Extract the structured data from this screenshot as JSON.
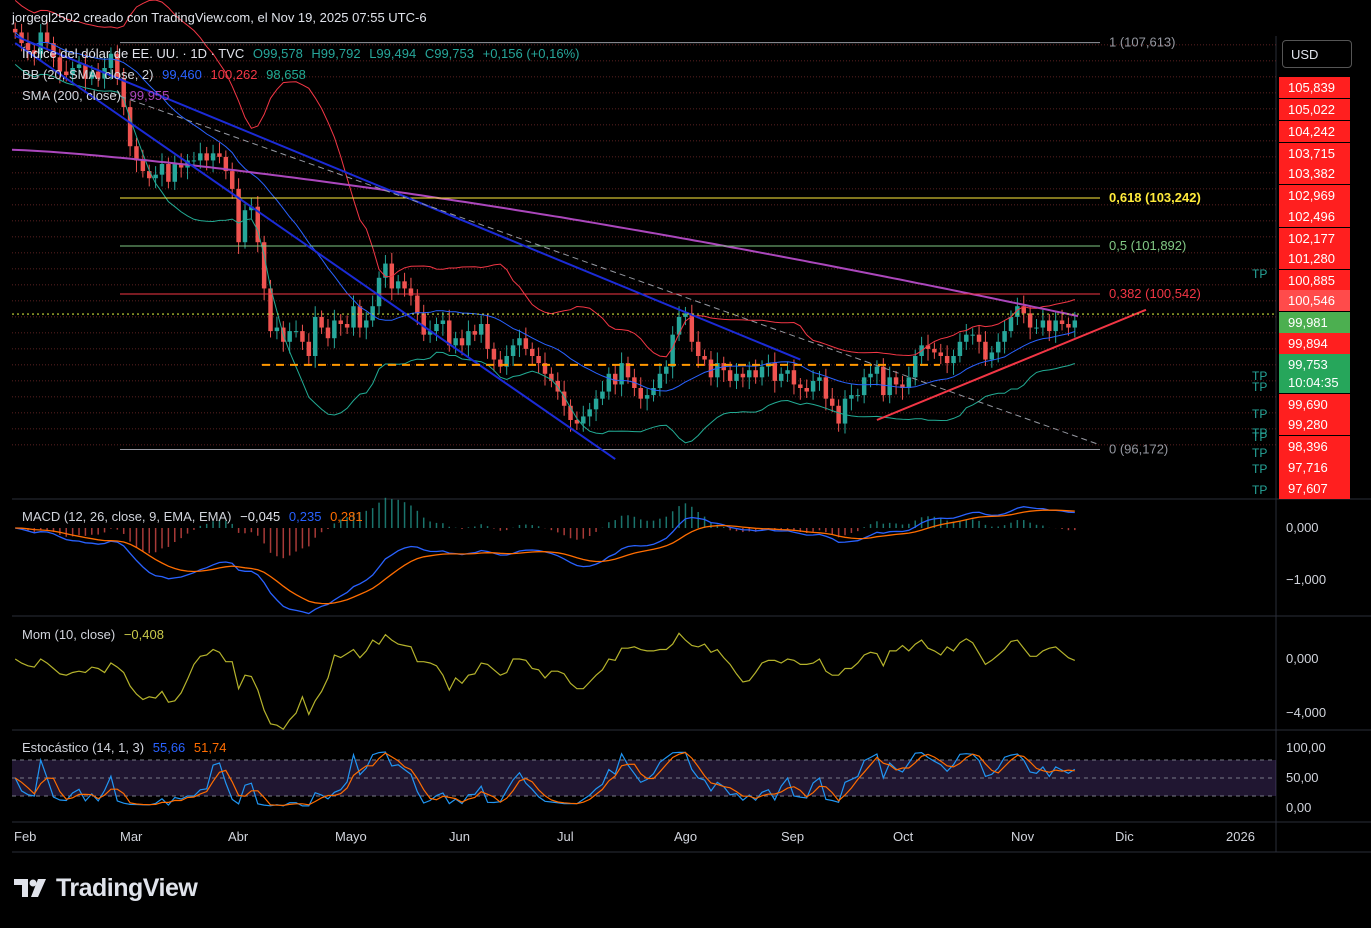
{
  "header": {
    "text": "jorgegl2502 creado con TradingView.com, el Nov 19, 2025 07:55 UTC-6"
  },
  "legend": {
    "symbol": "Índice del dólar de EE. UU. · 1D · TVC",
    "open": "O99,578",
    "high": "H99,792",
    "low": "L99,494",
    "close": "C99,753",
    "change": "+0,156 (+0,16%)",
    "bb_label": "BB (20, SMA, close, 2)",
    "bb_basis": "99,460",
    "bb_upper": "100,262",
    "bb_lower": "98,658",
    "sma_label": "SMA (200, close)",
    "sma_value": "99,955",
    "macd_label": "MACD (12, 26, close, 9, EMA, EMA)",
    "macd_hist": "−0,045",
    "macd_line": "0,235",
    "macd_signal": "0,281",
    "mom_label": "Mom (10, close)",
    "mom_value": "−0,408",
    "stoch_label": "Estocástico (14, 1, 3)",
    "stoch_k": "55,66",
    "stoch_d": "51,74"
  },
  "currency_button": "USD",
  "watermark": "TradingView",
  "colors": {
    "up": "#26a69a",
    "down": "#ef5350",
    "bb_basis": "#2962ff",
    "bb_band": "#f23645",
    "bb_lower": "#22ab94",
    "sma": "#ab47bc",
    "trend_blue": "#1b2bd6",
    "trend_red": "#f23645",
    "fib": "#ffeb3b"
  },
  "chart_data": [
    {
      "type": "candlestick",
      "title": "Índice del dólar de EE. UU. · 1D · TVC",
      "x_labels": [
        "Feb",
        "Mar",
        "Abr",
        "Mayo",
        "Jun",
        "Jul",
        "Ago",
        "Sep",
        "Oct",
        "Nov",
        "Dic",
        "2026"
      ],
      "ylim": [
        95.2,
        107.8
      ],
      "price_axis_labels": [
        {
          "value": "105,839",
          "style": "red"
        },
        {
          "value": "105,022",
          "style": "red"
        },
        {
          "value": "104,242",
          "style": "red"
        },
        {
          "value": "103,715",
          "style": "red"
        },
        {
          "value": "103,382",
          "style": "red"
        },
        {
          "value": "102,969",
          "style": "red"
        },
        {
          "value": "102,496",
          "style": "red"
        },
        {
          "value": "102,177",
          "style": "red"
        },
        {
          "value": "101,280",
          "style": "red"
        },
        {
          "value": "100,885",
          "style": "red"
        },
        {
          "value": "100,546",
          "style": "pink"
        },
        {
          "value": "99,981",
          "style": "green"
        },
        {
          "value": "99,894",
          "style": "red"
        },
        {
          "value": "99,753",
          "style": "last"
        },
        {
          "value": "10:04:35",
          "style": "last-sub"
        },
        {
          "value": "99,690",
          "style": "red"
        },
        {
          "value": "99,280",
          "style": "red"
        },
        {
          "value": "98,396",
          "style": "red"
        },
        {
          "value": "97,716",
          "style": "red"
        },
        {
          "value": "97,607",
          "style": "red"
        }
      ],
      "tp_labels": [
        "TP",
        "TP",
        "TP",
        "TP",
        "TP",
        "TP",
        "TP",
        "TP",
        "TP"
      ],
      "fibonacci": [
        {
          "label": "1 (107,613)",
          "value": 107.613
        },
        {
          "label": "0,618 (103,242)",
          "value": 103.242
        },
        {
          "label": "0,5 (101,892)",
          "value": 101.892
        },
        {
          "label": "0,382 (100,542)",
          "value": 100.542
        },
        {
          "label": "0 (96,172)",
          "value": 96.172
        }
      ],
      "closes": [
        107.9,
        107.6,
        107.4,
        107.3,
        107.9,
        107.6,
        107.2,
        106.8,
        106.7,
        106.9,
        107.0,
        106.6,
        106.8,
        106.6,
        106.9,
        107.3,
        106.6,
        105.8,
        104.7,
        104.3,
        104.0,
        103.8,
        103.9,
        104.2,
        103.7,
        104.2,
        104.1,
        104.3,
        104.3,
        104.5,
        104.3,
        104.5,
        104.4,
        104.0,
        103.5,
        102.0,
        102.9,
        103.0,
        102.0,
        100.7,
        99.5,
        99.6,
        99.2,
        99.5,
        99.5,
        99.2,
        98.8,
        99.9,
        99.6,
        99.3,
        99.8,
        99.7,
        99.6,
        100.2,
        99.6,
        99.8,
        100.2,
        101.0,
        101.4,
        100.7,
        100.9,
        100.7,
        100.5,
        100.0,
        99.4,
        99.5,
        99.7,
        99.8,
        99.1,
        99.3,
        99.1,
        99.5,
        99.4,
        99.7,
        99.0,
        98.7,
        98.5,
        98.8,
        99.1,
        99.3,
        99.0,
        98.8,
        98.6,
        98.3,
        98.1,
        97.8,
        97.4,
        97.0,
        96.9,
        97.1,
        97.3,
        97.6,
        97.8,
        98.3,
        98.0,
        98.6,
        98.2,
        97.9,
        97.6,
        97.7,
        97.9,
        98.3,
        98.5,
        99.4,
        99.9,
        100.0,
        99.2,
        98.8,
        98.7,
        98.2,
        98.6,
        98.4,
        98.1,
        98.3,
        98.2,
        98.4,
        98.2,
        98.5,
        98.6,
        98.1,
        98.3,
        98.4,
        98.0,
        97.9,
        97.8,
        98.1,
        98.2,
        97.6,
        97.4,
        96.9,
        97.6,
        97.7,
        97.7,
        98.2,
        98.3,
        98.5,
        97.7,
        98.2,
        98.0,
        97.9,
        98.2,
        98.8,
        99.1,
        99.0,
        98.9,
        98.8,
        98.6,
        98.8,
        99.2,
        99.4,
        99.4,
        99.2,
        98.7,
        98.9,
        99.2,
        99.5,
        99.9,
        100.2,
        100.0,
        99.6,
        99.6,
        99.8,
        99.5,
        99.8,
        99.7,
        99.6,
        99.8
      ]
    },
    {
      "type": "line",
      "title": "MACD (12, 26, close, 9, EMA, EMA)",
      "y_axis_labels": [
        "0,000",
        "−1,000"
      ],
      "series": [
        {
          "name": "MACD"
        },
        {
          "name": "Señal"
        },
        {
          "name": "Histograma"
        }
      ]
    },
    {
      "type": "line",
      "title": "Mom (10, close)",
      "y_axis_labels": [
        "0,000",
        "−4,000"
      ],
      "series": [
        {
          "name": "Mom"
        }
      ]
    },
    {
      "type": "line",
      "title": "Estocástico (14, 1, 3)",
      "y_axis_labels": [
        "100,00",
        "50,00",
        "0,00"
      ],
      "series": [
        {
          "name": "%K"
        },
        {
          "name": "%D"
        }
      ]
    }
  ]
}
